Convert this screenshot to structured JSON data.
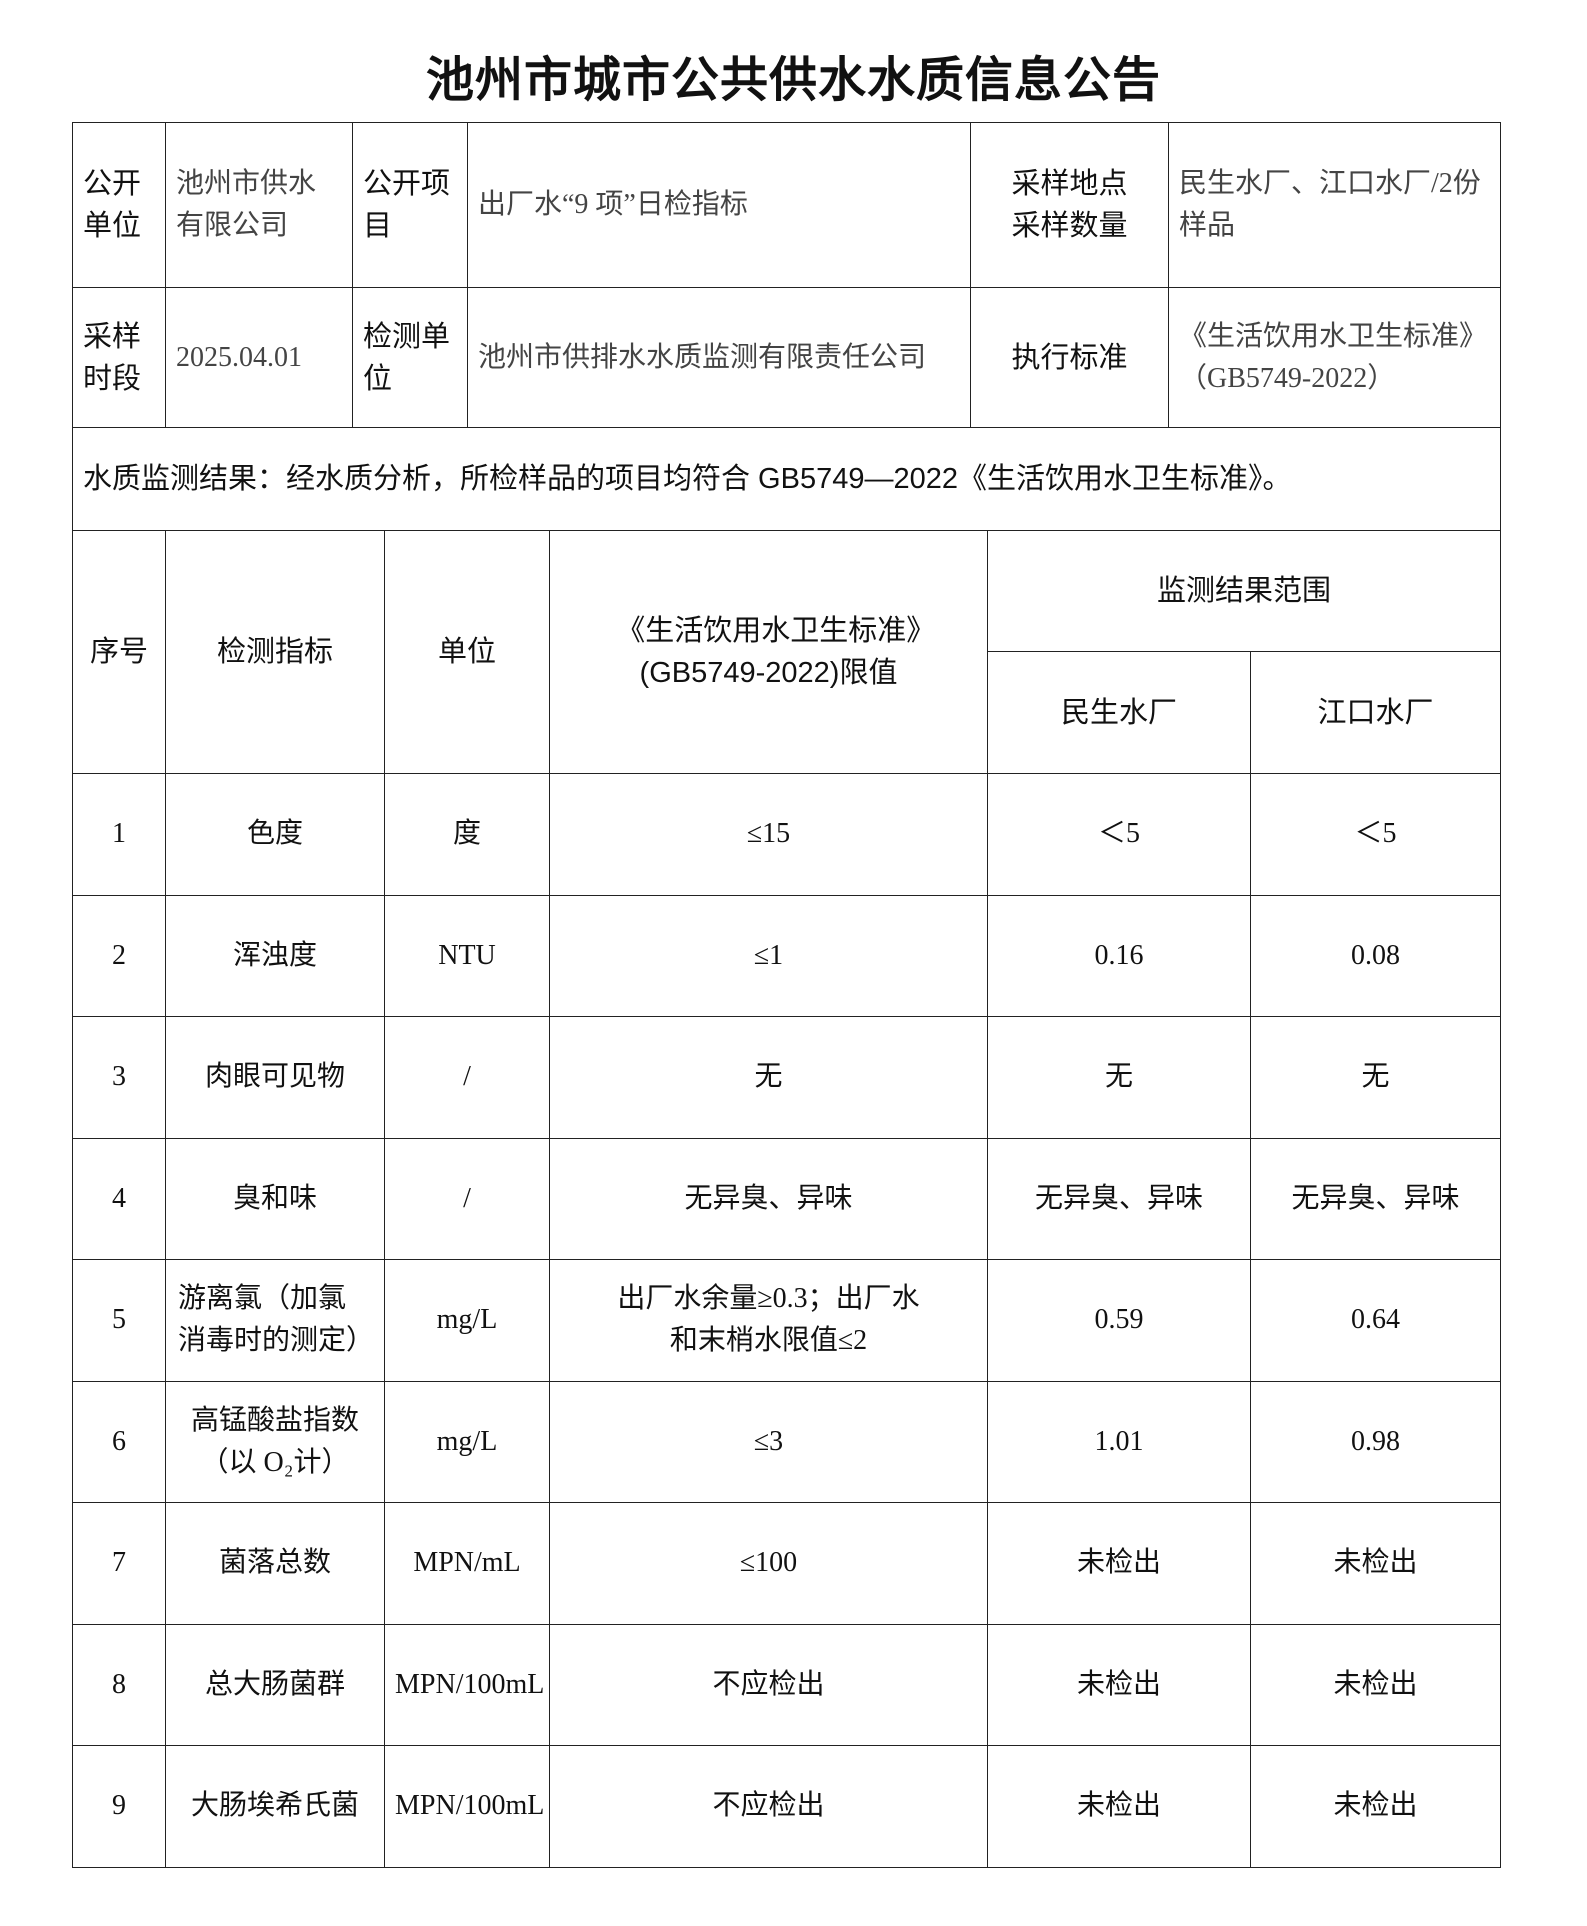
{
  "title": "池州市城市公共供水水质信息公告",
  "info": {
    "unit_label": "公开单位",
    "unit_value": "池州市供水有限公司",
    "item_label": "公开项目",
    "item_value": "出厂水“9 项”日检指标",
    "site_label": "采样地点采样数量",
    "site_value": "民生水厂、江口水厂/2份样品",
    "period_label": "采样时段",
    "period_value": "2025.04.01",
    "lab_label": "检测单位",
    "lab_value": "池州市供排水水质监测有限责任公司",
    "standard_label": "执行标准",
    "standard_value": "《生活饮用水卫生标准》（GB5749-2022）",
    "conclusion": "水质监测结果：经水质分析，所检样品的项目均符合 GB5749—2022《生活饮用水卫生标准》。"
  },
  "results": {
    "headers": {
      "seq": "序号",
      "indicator": "检测指标",
      "unit": "单位",
      "limit": "《生活饮用水卫生标准》(GB5749-2022)限值",
      "range": "监测结果范围",
      "plant1": "民生水厂",
      "plant2": "江口水厂"
    },
    "rows": [
      {
        "seq": "1",
        "indicator": "色度",
        "unit": "度",
        "limit": "≤15",
        "plant1": "＜5",
        "plant2": "＜5"
      },
      {
        "seq": "2",
        "indicator": "浑浊度",
        "unit": "NTU",
        "limit": "≤1",
        "plant1": "0.16",
        "plant2": "0.08"
      },
      {
        "seq": "3",
        "indicator": "肉眼可见物",
        "unit": "/",
        "limit": "无",
        "plant1": "无",
        "plant2": "无"
      },
      {
        "seq": "4",
        "indicator": "臭和味",
        "unit": "/",
        "limit": "无异臭、异味",
        "plant1": "无异臭、异味",
        "plant2": "无异臭、异味"
      },
      {
        "seq": "5",
        "indicator": "游离氯（加氯消毒时的测定）",
        "unit": "mg/L",
        "limit": "出厂水余量≥0.3；出厂水和末梢水限值≤2",
        "plant1": "0.59",
        "plant2": "0.64"
      },
      {
        "seq": "6",
        "indicator": "高锰酸盐指数（以 O₂计）",
        "unit": "mg/L",
        "limit": "≤3",
        "plant1": "1.01",
        "plant2": "0.98"
      },
      {
        "seq": "7",
        "indicator": "菌落总数",
        "unit": "MPN/mL",
        "limit": "≤100",
        "plant1": "未检出",
        "plant2": "未检出"
      },
      {
        "seq": "8",
        "indicator": "总大肠菌群",
        "unit": "MPN/100mL",
        "limit": "不应检出",
        "plant1": "未检出",
        "plant2": "未检出"
      },
      {
        "seq": "9",
        "indicator": "大肠埃希氏菌",
        "unit": "MPN/100mL",
        "limit": "不应检出",
        "plant1": "未检出",
        "plant2": "未检出"
      }
    ]
  }
}
